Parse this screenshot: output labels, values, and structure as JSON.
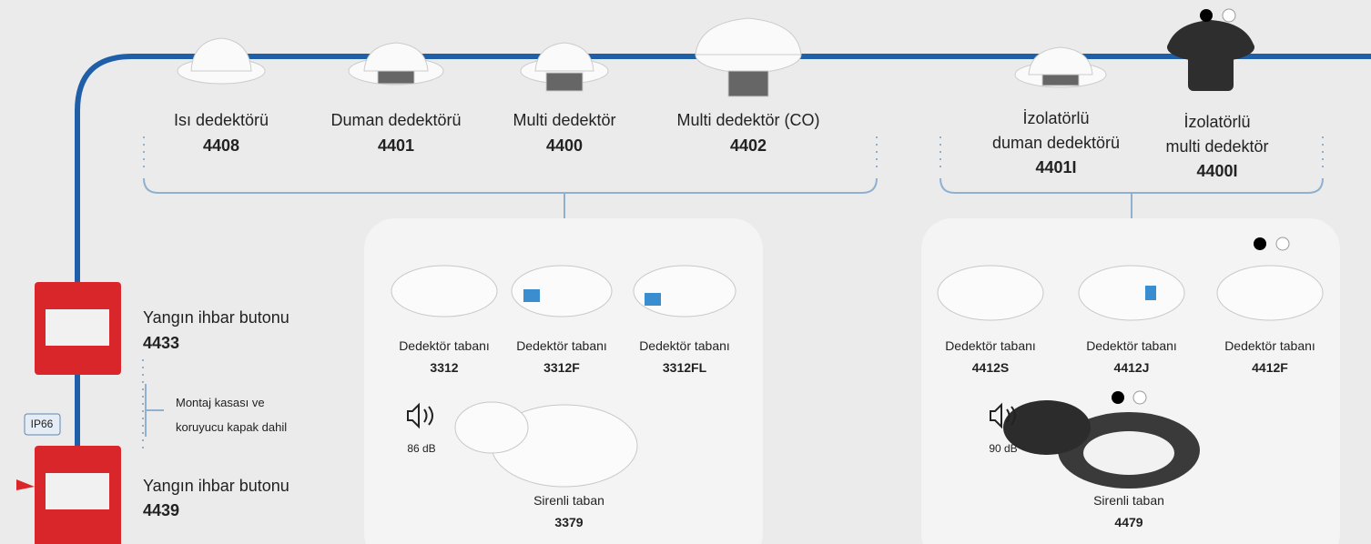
{
  "detectors": [
    {
      "name": "Isı dedektörü",
      "code": "4408"
    },
    {
      "name": "Duman dedektörü",
      "code": "4401"
    },
    {
      "name": "Multi dedektör",
      "code": "4400"
    },
    {
      "name": "Multi dedektör (CO)",
      "code": "4402"
    }
  ],
  "isolator_detectors": [
    {
      "name_lines": [
        "İzolatörlü",
        "duman dedektörü"
      ],
      "code": "4401I"
    },
    {
      "name_lines": [
        "İzolatörlü",
        "multi dedektör"
      ],
      "code": "4400I"
    }
  ],
  "bases_left": [
    {
      "name": "Dedektör tabanı",
      "code": "3312"
    },
    {
      "name": "Dedektör tabanı",
      "code": "3312F"
    },
    {
      "name": "Dedektör tabanı",
      "code": "3312FL"
    }
  ],
  "siren_left": {
    "level": "86 dB",
    "name": "Sirenli taban",
    "code": "3379"
  },
  "bases_right": [
    {
      "name": "Dedektör tabanı",
      "code": "4412S"
    },
    {
      "name": "Dedektör tabanı",
      "code": "4412J"
    },
    {
      "name": "Dedektör tabanı",
      "code": "4412F"
    }
  ],
  "siren_right": {
    "level": "90 dB",
    "name": "Sirenli taban",
    "code": "4479"
  },
  "call_points": [
    {
      "name": "Yangın ihbar butonu",
      "code": "4433"
    },
    {
      "name": "Yangın ihbar butonu",
      "code": "4439"
    }
  ],
  "note_lines": [
    "Montaj kasası ve",
    "koruyucu kapak dahil"
  ],
  "badge": "IP66"
}
